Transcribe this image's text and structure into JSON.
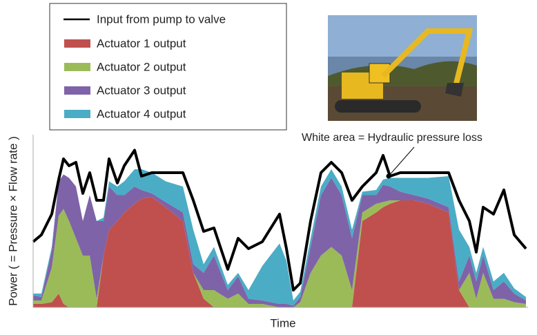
{
  "chart_data": {
    "type": "area",
    "stacked": true,
    "x": [
      0,
      12,
      27,
      37,
      44,
      52,
      62,
      72,
      82,
      92,
      102,
      110,
      122,
      132,
      147,
      157,
      172,
      192,
      217,
      232,
      247,
      262,
      282,
      297,
      312,
      332,
      357,
      367,
      377,
      387,
      402,
      417,
      432,
      447,
      462,
      477,
      497,
      507,
      517,
      532,
      552,
      572,
      602,
      617,
      632,
      642,
      652,
      667,
      682,
      697,
      714
    ],
    "xlim": [
      0,
      714
    ],
    "ylim": [
      0,
      100
    ],
    "xlabel": "Time",
    "ylabel": "Power ( = Pressure × Flow rate )",
    "annotation": "White area = Hydraulic pressure loss",
    "line": {
      "name": "Input from pump to valve",
      "color": "#000000",
      "values": [
        38,
        42,
        54,
        74,
        86,
        82,
        84,
        66,
        78,
        62,
        62,
        86,
        72,
        82,
        91,
        76,
        78,
        78,
        78,
        62,
        44,
        46,
        22,
        40,
        34,
        38,
        54,
        34,
        10,
        14,
        50,
        78,
        84,
        78,
        62,
        70,
        78,
        88,
        76,
        78,
        78,
        78,
        78,
        62,
        50,
        32,
        58,
        54,
        68,
        42,
        34
      ]
    },
    "series": [
      {
        "name": "Actuator 1 output",
        "color": "#c0504d",
        "values": [
          2,
          2,
          3,
          8,
          2,
          0,
          0,
          0,
          0,
          0,
          30,
          45,
          50,
          55,
          60,
          63,
          64,
          58,
          50,
          20,
          5,
          0,
          0,
          0,
          0,
          0,
          0,
          0,
          0,
          0,
          0,
          0,
          0,
          0,
          0,
          50,
          55,
          58,
          60,
          62,
          62,
          60,
          55,
          10,
          0,
          0,
          0,
          0,
          0,
          0,
          0
        ]
      },
      {
        "name": "Actuator 2 output",
        "color": "#9bbb59",
        "values": [
          2,
          2,
          20,
          45,
          55,
          50,
          40,
          30,
          30,
          5,
          0,
          0,
          0,
          0,
          0,
          0,
          0,
          0,
          0,
          0,
          5,
          10,
          5,
          8,
          2,
          2,
          0,
          0,
          0,
          3,
          20,
          30,
          35,
          30,
          10,
          5,
          5,
          3,
          2,
          0,
          0,
          0,
          0,
          0,
          20,
          5,
          20,
          5,
          5,
          3,
          2
        ]
      },
      {
        "name": "Actuator 3 output",
        "color": "#7f63a8",
        "values": [
          3,
          2,
          10,
          20,
          20,
          25,
          30,
          20,
          35,
          45,
          20,
          25,
          15,
          10,
          10,
          5,
          2,
          3,
          5,
          5,
          10,
          20,
          5,
          10,
          3,
          2,
          2,
          2,
          1,
          3,
          15,
          35,
          40,
          35,
          30,
          10,
          5,
          10,
          8,
          5,
          3,
          3,
          3,
          5,
          10,
          10,
          10,
          5,
          10,
          5,
          2
        ]
      },
      {
        "name": "Actuator 4 output",
        "color": "#4bacc6",
        "values": [
          1,
          2,
          2,
          0,
          0,
          0,
          0,
          0,
          0,
          0,
          2,
          3,
          5,
          8,
          10,
          12,
          12,
          12,
          15,
          20,
          5,
          5,
          3,
          2,
          5,
          20,
          35,
          25,
          3,
          3,
          5,
          5,
          5,
          5,
          5,
          2,
          3,
          3,
          5,
          8,
          10,
          12,
          18,
          30,
          5,
          5,
          5,
          5,
          5,
          3,
          2
        ]
      }
    ]
  }
}
